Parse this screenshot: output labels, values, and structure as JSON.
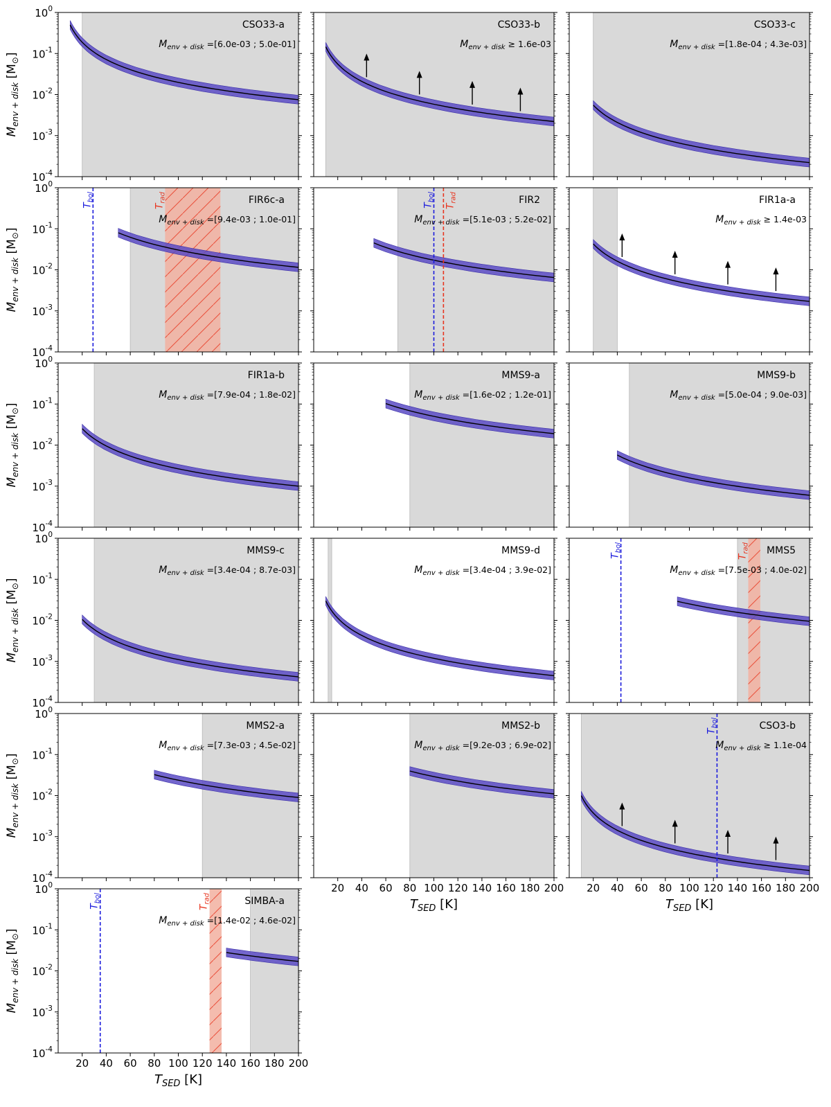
{
  "figure": {
    "y_axis_label": "M",
    "y_axis_label_sub": "env + disk",
    "y_axis_unit": "[M",
    "y_axis_unit_sub": "⊙",
    "y_axis_unit_close": "]",
    "x_axis_label": "T",
    "x_axis_label_sub": "SED",
    "x_axis_unit": "[K]",
    "mass_label_prefix": "M",
    "mass_label_sub": "env + disk",
    "tbol_label": "T",
    "tbol_sub": "bol",
    "trad_label": "T",
    "trad_sub": "rad"
  },
  "chart_data": {
    "type": "line",
    "xlim": [
      0,
      200
    ],
    "ylim": [
      0.0001,
      1
    ],
    "yscale": "log",
    "x_ticks": [
      20,
      40,
      60,
      80,
      100,
      120,
      140,
      160,
      180,
      200
    ],
    "y_ticks": [
      {
        "value": 1,
        "base": "10",
        "exp": "0"
      },
      {
        "value": 0.1,
        "base": "10",
        "exp": "-1"
      },
      {
        "value": 0.01,
        "base": "10",
        "exp": "-2"
      },
      {
        "value": 0.001,
        "base": "10",
        "exp": "-3"
      },
      {
        "value": 0.0001,
        "base": "10",
        "exp": "-4"
      }
    ],
    "colors": {
      "curve": "#000000",
      "band": "#5a4bc4",
      "shade": "#d9d9d9",
      "tbol": "#1a1adc",
      "trad": "#e8341e",
      "trad_band": "#f2b0a0"
    },
    "panels": [
      {
        "name": "CSO33-a",
        "range_text": "=[6.0e-03 ; 5.0e-01]",
        "x_start": 10,
        "y_at_200": 0.0075,
        "shade": [
          20,
          200
        ],
        "arrows": false
      },
      {
        "name": "CSO33-b",
        "range_text": "≥ 1.6e-03",
        "x_start": 10,
        "y_at_200": 0.0022,
        "shade": [
          10,
          200
        ],
        "arrows": true
      },
      {
        "name": "CSO33-c",
        "range_text": "=[1.8e-04 ; 4.3e-03]",
        "x_start": 20,
        "y_at_200": 0.00022,
        "shade": [
          20,
          200
        ],
        "arrows": false
      },
      {
        "name": "FIR6c-a",
        "range_text": "=[9.4e-03 ; 1.0e-01]",
        "x_start": 50,
        "y_at_200": 0.0115,
        "shade": [
          60,
          200
        ],
        "tbol": 29,
        "trad": [
          89,
          135
        ],
        "trad_hatch": true,
        "arrows": false
      },
      {
        "name": "FIR2",
        "range_text": "=[5.1e-03 ; 5.2e-02]",
        "x_start": 50,
        "y_at_200": 0.0065,
        "shade": [
          70,
          200
        ],
        "tbol": 100,
        "trad_line": 108,
        "arrows": false
      },
      {
        "name": "FIR1a-a",
        "range_text": "≥ 1.4e-03",
        "x_start": 20,
        "y_at_200": 0.0017,
        "shade": [
          20,
          40
        ],
        "arrows": true
      },
      {
        "name": "FIR1a-b",
        "range_text": "=[7.9e-04 ; 1.8e-02]",
        "x_start": 20,
        "y_at_200": 0.001,
        "shade": [
          30,
          200
        ],
        "arrows": false
      },
      {
        "name": "MMS9-a",
        "range_text": "=[1.6e-02 ; 1.2e-01]",
        "x_start": 60,
        "y_at_200": 0.019,
        "shade": [
          80,
          200
        ],
        "arrows": false
      },
      {
        "name": "MMS9-b",
        "range_text": "=[5.0e-04 ; 9.0e-03]",
        "x_start": 40,
        "y_at_200": 0.0006,
        "shade": [
          50,
          200
        ],
        "arrows": false
      },
      {
        "name": "MMS9-c",
        "range_text": "=[3.4e-04 ; 8.7e-03]",
        "x_start": 20,
        "y_at_200": 0.00042,
        "shade": [
          30,
          200
        ],
        "arrows": false
      },
      {
        "name": "MMS9-d",
        "range_text": "=[3.4e-04 ; 3.9e-02]",
        "x_start": 10,
        "y_at_200": 0.00045,
        "shade": [
          12,
          15
        ],
        "arrows": false
      },
      {
        "name": "MMS5",
        "range_text": "=[7.5e-03 ; 4.0e-02]",
        "x_start": 90,
        "y_at_200": 0.0095,
        "shade": [
          140,
          200
        ],
        "tbol": 43,
        "trad": [
          149,
          159
        ],
        "trad_hatch": true,
        "arrows": false
      },
      {
        "name": "MMS2-a",
        "range_text": "=[7.3e-03 ; 4.5e-02]",
        "x_start": 80,
        "y_at_200": 0.009,
        "shade": [
          120,
          200
        ],
        "arrows": false
      },
      {
        "name": "MMS2-b",
        "range_text": "=[9.2e-03 ; 6.9e-02]",
        "x_start": 80,
        "y_at_200": 0.011,
        "shade": [
          80,
          200
        ],
        "arrows": false
      },
      {
        "name": "CSO3-b",
        "range_text": "≥ 1.1e-04",
        "x_start": 10,
        "y_at_200": 0.00015,
        "shade": [
          10,
          200
        ],
        "tbol": 123,
        "arrows": true
      },
      {
        "name": "SIMBA-a",
        "range_text": "=[1.4e-02 ; 4.6e-02]",
        "x_start": 140,
        "y_at_200": 0.017,
        "shade": [
          160,
          200
        ],
        "tbol": 35,
        "trad": [
          126,
          136
        ],
        "trad_hatch": true,
        "arrows": false
      }
    ]
  }
}
